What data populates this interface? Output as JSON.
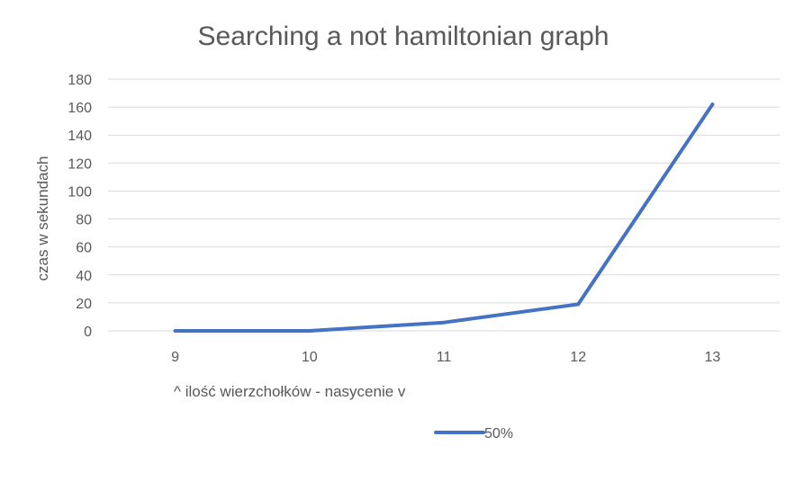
{
  "chart_data": {
    "type": "line",
    "title": "Searching a not hamiltonian graph",
    "xlabel": "^ ilość wierzchołków  - nasycenie v",
    "ylabel": "czas w sekundach",
    "categories": [
      "9",
      "10",
      "11",
      "12",
      "13"
    ],
    "ylim": [
      0,
      180
    ],
    "yticks": [
      0,
      20,
      40,
      60,
      80,
      100,
      120,
      140,
      160,
      180
    ],
    "grid": true,
    "legend_position": "bottom",
    "series": [
      {
        "name": "50%",
        "values": [
          0,
          0,
          6,
          19,
          162
        ],
        "color": "#4472c4"
      }
    ]
  }
}
